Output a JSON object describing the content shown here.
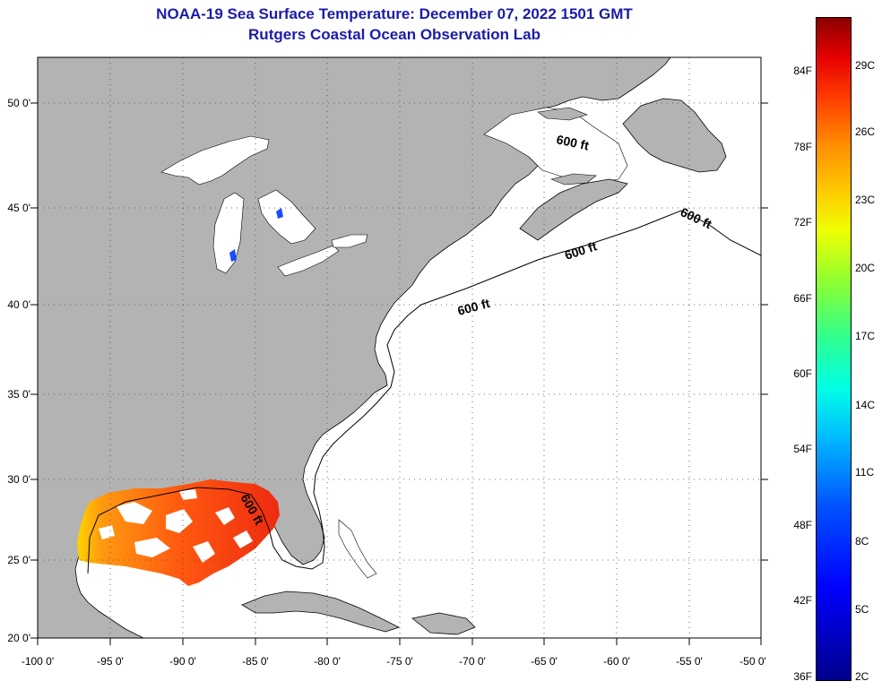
{
  "header": {
    "title_line1": "NOAA-19 Sea Surface Temperature:  December 07, 2022 1501 GMT",
    "title_line2": "Rutgers Coastal Ocean Observation Lab"
  },
  "axes": {
    "latitude_labels": [
      "50 0'",
      "45 0'",
      "40 0'",
      "35 0'",
      "30 0'",
      "25 0'",
      "20 0'"
    ],
    "longitude_labels": [
      "-100 0'",
      "-95 0'",
      "-90 0'",
      "-85 0'",
      "-80 0'",
      "-75 0'",
      "-70 0'",
      "-65 0'",
      "-60 0'",
      "-55 0'",
      "-50 0'"
    ],
    "gridlines": "dotted"
  },
  "contour_labels": [
    "600 ft",
    "600 ft",
    "600 ft",
    "600 ft",
    "600 ft"
  ],
  "colorbar": {
    "fahrenheit_labels": [
      "84F",
      "78F",
      "72F",
      "66F",
      "60F",
      "54F",
      "48F",
      "42F",
      "36F"
    ],
    "celsius_labels": [
      "29C",
      "26C",
      "23C",
      "20C",
      "17C",
      "14C",
      "11C",
      "8C",
      "5C",
      "2C"
    ],
    "colors": [
      "#00008c",
      "#0000ff",
      "#00b4ff",
      "#00ffe6",
      "#8cff32",
      "#f0ff00",
      "#ff8c00",
      "#ff3c00",
      "#8c0000"
    ]
  },
  "map_colors": {
    "land": "#b3b3b3",
    "ocean": "#ffffff",
    "sst_gulf": "#ff4a10",
    "lake_cold_patch": "#1a4cff"
  }
}
